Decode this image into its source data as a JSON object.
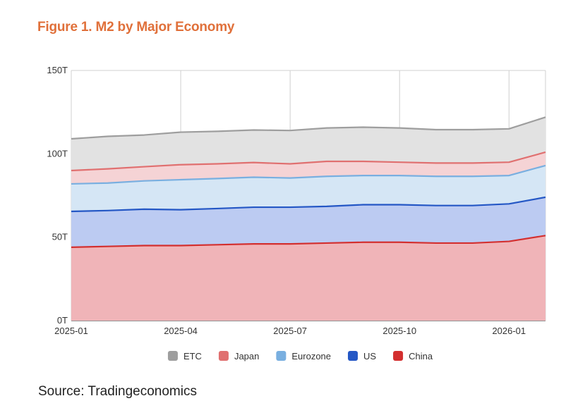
{
  "chart_data": {
    "type": "area",
    "stacked": true,
    "title": "Figure 1. M2 by Major Economy",
    "source": "Source: Tradingeconomics",
    "y_unit": "T",
    "ylim": [
      0,
      150
    ],
    "yticks": [
      0,
      50,
      100,
      150
    ],
    "ytick_labels": [
      "0T",
      "50T",
      "100T",
      "150T"
    ],
    "x": [
      "2025-01",
      "2025-02",
      "2025-03",
      "2025-04",
      "2025-05",
      "2025-06",
      "2025-07",
      "2025-08",
      "2025-09",
      "2025-10",
      "2025-11",
      "2025-12",
      "2026-01",
      "2026-02"
    ],
    "xtick_labels": [
      "2025-01",
      "2025-04",
      "2025-07",
      "2025-10",
      "2026-01"
    ],
    "xtick_positions": [
      0,
      3,
      6,
      9,
      12
    ],
    "grid": true,
    "legend_position": "bottom",
    "series_order_top_to_bottom": [
      "ETC",
      "Japan",
      "Eurozone",
      "US",
      "China"
    ],
    "series": [
      {
        "name": "China",
        "color": "#d32f2f",
        "fill": "#f0b4b8",
        "values": [
          44,
          44.5,
          45,
          45,
          45.5,
          46,
          46,
          46.5,
          47,
          47,
          46.5,
          46.5,
          47.5,
          51
        ]
      },
      {
        "name": "US",
        "color": "#2457c5",
        "fill": "#bccbf2",
        "values": [
          21.5,
          21.5,
          21.8,
          21.5,
          21.7,
          22,
          22,
          22,
          22.5,
          22.5,
          22.5,
          22.5,
          22.5,
          23
        ]
      },
      {
        "name": "Eurozone",
        "color": "#79afe0",
        "fill": "#d5e6f5",
        "values": [
          16.5,
          16.5,
          17,
          18,
          18,
          18,
          17.5,
          18,
          17.5,
          17.5,
          17.5,
          17.5,
          17,
          19
        ]
      },
      {
        "name": "Japan",
        "color": "#e07070",
        "fill": "#f5d3d5",
        "values": [
          8,
          8.5,
          8.5,
          9,
          8.8,
          8.8,
          8.5,
          9,
          8.5,
          8,
          8,
          8,
          8,
          8
        ]
      },
      {
        "name": "ETC",
        "color": "#9e9e9e",
        "fill": "#e2e2e2",
        "values": [
          19,
          19.5,
          19,
          19.5,
          19.5,
          19.5,
          20,
          20,
          20.5,
          20.5,
          20,
          20,
          20,
          21
        ]
      }
    ]
  }
}
